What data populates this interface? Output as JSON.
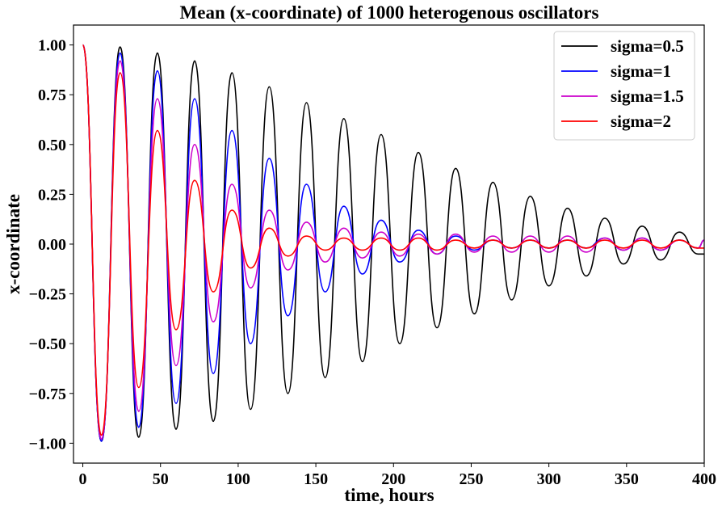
{
  "chart_data": {
    "type": "line",
    "title": "Mean (x-coordinate) of 1000 heterogenous oscillators",
    "xlabel": "time, hours",
    "ylabel": "x-coordinate",
    "xlim": [
      -6,
      400
    ],
    "ylim": [
      -1.1,
      1.1
    ],
    "xticks": [
      0,
      50,
      100,
      150,
      200,
      250,
      300,
      350,
      400
    ],
    "xtick_labels": [
      "0",
      "50",
      "100",
      "150",
      "200",
      "250",
      "300",
      "350",
      "400"
    ],
    "yticks": [
      1.0,
      0.75,
      0.5,
      0.25,
      0.0,
      -0.25,
      -0.5,
      -0.75,
      -1.0
    ],
    "ytick_labels": [
      "1.00",
      "0.75",
      "0.50",
      "0.25",
      "0.00",
      "−0.25",
      "−0.50",
      "−0.75",
      "−1.00"
    ],
    "grid": false,
    "legend_position": "top-right",
    "series": [
      {
        "name": "sigma=0.5",
        "color": "#000000",
        "x": [
          0,
          12,
          24,
          36,
          48,
          60,
          72,
          84,
          96,
          108,
          120,
          132,
          144,
          156,
          168,
          180,
          192,
          204,
          216,
          228,
          240,
          252,
          264,
          276,
          288,
          300,
          312,
          324,
          336,
          348,
          360,
          372,
          384,
          396,
          400
        ],
        "y": [
          1.0,
          -0.99,
          0.99,
          -0.97,
          0.96,
          -0.93,
          0.92,
          -0.89,
          0.86,
          -0.83,
          0.79,
          -0.75,
          0.71,
          -0.67,
          0.63,
          -0.59,
          0.55,
          -0.5,
          0.46,
          -0.42,
          0.38,
          -0.35,
          0.31,
          -0.28,
          0.24,
          -0.21,
          0.18,
          -0.16,
          0.13,
          -0.1,
          0.09,
          -0.08,
          0.06,
          -0.05,
          -0.05
        ]
      },
      {
        "name": "sigma=1",
        "color": "#0000ff",
        "x": [
          0,
          12,
          24,
          36,
          48,
          60,
          72,
          84,
          96,
          108,
          120,
          132,
          144,
          156,
          168,
          180,
          192,
          204,
          216,
          228,
          240,
          252,
          264,
          276,
          288,
          300,
          312,
          324,
          336,
          348,
          360,
          372,
          384,
          396,
          400
        ],
        "y": [
          1.0,
          -0.99,
          0.96,
          -0.92,
          0.87,
          -0.8,
          0.73,
          -0.65,
          0.57,
          -0.5,
          0.43,
          -0.36,
          0.3,
          -0.24,
          0.19,
          -0.15,
          0.12,
          -0.09,
          0.07,
          -0.05,
          0.04,
          -0.03,
          0.02,
          -0.02,
          0.02,
          -0.02,
          0.02,
          -0.02,
          0.03,
          -0.03,
          0.03,
          -0.03,
          0.02,
          -0.02,
          0.02
        ]
      },
      {
        "name": "sigma=1.5",
        "color": "#cc00cc",
        "x": [
          0,
          12,
          24,
          36,
          48,
          60,
          72,
          84,
          96,
          108,
          120,
          132,
          144,
          156,
          168,
          180,
          192,
          204,
          216,
          228,
          240,
          252,
          264,
          276,
          288,
          300,
          312,
          324,
          336,
          348,
          360,
          372,
          384,
          396,
          400
        ],
        "y": [
          1.0,
          -0.98,
          0.92,
          -0.84,
          0.73,
          -0.61,
          0.5,
          -0.39,
          0.3,
          -0.22,
          0.17,
          -0.13,
          0.11,
          -0.09,
          0.08,
          -0.07,
          0.06,
          -0.06,
          0.05,
          -0.05,
          0.05,
          -0.04,
          0.04,
          -0.04,
          0.04,
          -0.04,
          0.04,
          -0.04,
          0.03,
          -0.03,
          0.03,
          -0.03,
          0.02,
          -0.02,
          0.02
        ]
      },
      {
        "name": "sigma=2",
        "color": "#ff0000",
        "x": [
          0,
          12,
          24,
          36,
          48,
          60,
          72,
          84,
          96,
          108,
          120,
          132,
          144,
          156,
          168,
          180,
          192,
          204,
          216,
          228,
          240,
          252,
          264,
          276,
          288,
          300,
          312,
          324,
          336,
          348,
          360,
          372,
          384,
          396,
          400
        ],
        "y": [
          1.0,
          -0.96,
          0.86,
          -0.72,
          0.57,
          -0.43,
          0.32,
          -0.24,
          0.17,
          -0.12,
          0.08,
          -0.06,
          0.04,
          -0.03,
          0.03,
          -0.03,
          0.03,
          -0.03,
          0.03,
          -0.03,
          0.02,
          -0.02,
          0.02,
          -0.02,
          0.02,
          -0.02,
          0.02,
          -0.02,
          0.02,
          -0.02,
          0.02,
          -0.02,
          0.02,
          -0.02,
          -0.02
        ]
      }
    ]
  }
}
